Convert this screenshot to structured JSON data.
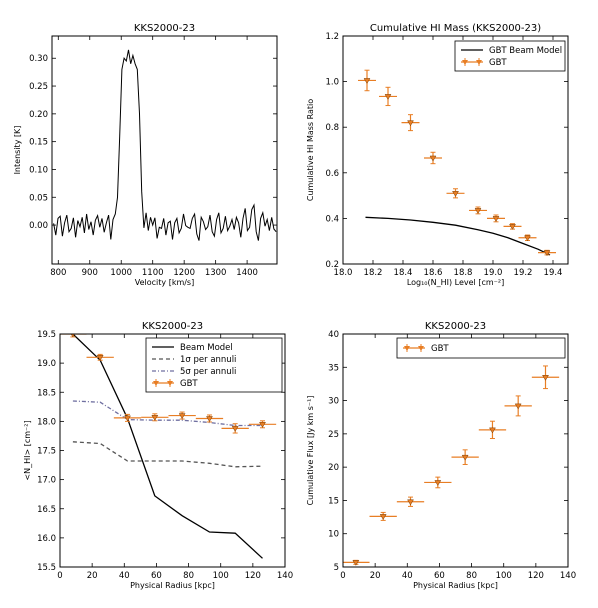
{
  "chart_data": [
    {
      "type": "line",
      "title": "KKS2000-23",
      "xlabel": "Velocity [km/s]",
      "ylabel": "Intensity [K]",
      "xlim": [
        780,
        1495
      ],
      "ylim": [
        -0.07,
        0.34
      ],
      "xticks": [
        800,
        900,
        1000,
        1100,
        1200,
        1300,
        1400
      ],
      "xtick_labels": [
        "800",
        "900",
        "1000",
        "1100",
        "1200",
        "1300",
        "1400"
      ],
      "yticks": [
        0.0,
        0.05,
        0.1,
        0.15,
        0.2,
        0.25,
        0.3
      ],
      "ytick_labels": [
        "0.00",
        "0.05",
        "0.10",
        "0.15",
        "0.20",
        "0.25",
        "0.30"
      ],
      "grid": false,
      "series": [
        {
          "color": "#000000",
          "x": [
            785,
            792,
            799,
            806,
            813,
            820,
            827,
            834,
            841,
            848,
            855,
            862,
            869,
            876,
            883,
            890,
            897,
            904,
            911,
            918,
            925,
            932,
            939,
            946,
            953,
            960,
            967,
            974,
            981,
            988,
            995,
            1002,
            1009,
            1016,
            1023,
            1030,
            1037,
            1044,
            1051,
            1058,
            1065,
            1072,
            1079,
            1086,
            1093,
            1100,
            1107,
            1114,
            1121,
            1128,
            1135,
            1142,
            1149,
            1156,
            1163,
            1170,
            1177,
            1184,
            1191,
            1198,
            1205,
            1212,
            1219,
            1226,
            1233,
            1240,
            1247,
            1254,
            1261,
            1268,
            1275,
            1282,
            1289,
            1296,
            1303,
            1310,
            1317,
            1324,
            1331,
            1338,
            1345,
            1352,
            1359,
            1366,
            1373,
            1380,
            1387,
            1394,
            1401,
            1408,
            1415,
            1422,
            1429,
            1436,
            1443,
            1450,
            1457,
            1464,
            1471,
            1478,
            1485,
            1492
          ],
          "y": [
            0.003,
            -0.018,
            0.012,
            0.016,
            -0.02,
            0.004,
            0.018,
            -0.012,
            -0.006,
            0.013,
            -0.022,
            0.008,
            -0.003,
            0.014,
            -0.014,
            0.02,
            -0.008,
            0.006,
            -0.018,
            0.009,
            0.017,
            -0.004,
            0.012,
            -0.013,
            0.004,
            0.018,
            -0.026,
            0.01,
            0.02,
            0.05,
            0.16,
            0.28,
            0.3,
            0.295,
            0.315,
            0.29,
            0.305,
            0.29,
            0.28,
            0.2,
            0.06,
            -0.005,
            0.022,
            -0.01,
            0.014,
            0.0,
            0.013,
            -0.024,
            -0.004,
            -0.006,
            0.012,
            -0.018,
            0.004,
            0.007,
            -0.026,
            0.004,
            0.012,
            -0.014,
            -0.006,
            0.02,
            -0.001,
            -0.004,
            -0.006,
            0.012,
            0.02,
            -0.016,
            -0.028,
            0.014,
            0.006,
            -0.008,
            -0.003,
            0.018,
            -0.012,
            -0.02,
            0.01,
            0.022,
            -0.014,
            -0.006,
            0.016,
            -0.01,
            -0.002,
            0.01,
            -0.008,
            0.014,
            0.004,
            -0.022,
            0.012,
            0.03,
            -0.01,
            -0.004,
            0.028,
            0.036,
            -0.012,
            -0.028,
            0.012,
            0.022,
            -0.002,
            0.01,
            -0.01,
            0.014,
            -0.007,
            -0.012
          ]
        }
      ]
    },
    {
      "type": "line",
      "title": "Cumulative HI Mass (KKS2000-23)",
      "xlabel": "Log₁₀(N_HI) Level [cm⁻²]",
      "ylabel": "Cumulative HI Mass Ratio",
      "xlim": [
        18.0,
        19.5
      ],
      "ylim": [
        0.2,
        1.2
      ],
      "xticks": [
        18.0,
        18.2,
        18.4,
        18.6,
        18.8,
        19.0,
        19.2,
        19.4
      ],
      "xtick_labels": [
        "18.0",
        "18.2",
        "18.4",
        "18.6",
        "18.8",
        "19.0",
        "19.2",
        "19.4"
      ],
      "yticks": [
        0.2,
        0.4,
        0.6,
        0.8,
        1.0,
        1.2
      ],
      "ytick_labels": [
        "0.2",
        "0.4",
        "0.6",
        "0.8",
        "1.0",
        "1.2"
      ],
      "legend": "top-right",
      "grid": false,
      "series": [
        {
          "name": "GBT Beam Model",
          "kind": "line",
          "color": "#000000",
          "x": [
            18.15,
            18.3,
            18.45,
            18.6,
            18.75,
            18.9,
            19.0,
            19.1,
            19.2,
            19.3,
            19.38
          ],
          "y": [
            0.405,
            0.4,
            0.393,
            0.383,
            0.37,
            0.35,
            0.335,
            0.315,
            0.29,
            0.265,
            0.24
          ]
        },
        {
          "name": "GBT",
          "kind": "errorbar",
          "color": "#e87e24",
          "x": [
            18.16,
            18.3,
            18.45,
            18.6,
            18.75,
            18.9,
            19.02,
            19.13,
            19.23,
            19.36
          ],
          "y": [
            1.005,
            0.935,
            0.82,
            0.665,
            0.51,
            0.435,
            0.4,
            0.365,
            0.315,
            0.25
          ],
          "xerr": [
            0.06,
            0.06,
            0.06,
            0.06,
            0.06,
            0.06,
            0.06,
            0.06,
            0.06,
            0.06
          ],
          "yerr": [
            0.045,
            0.04,
            0.035,
            0.025,
            0.02,
            0.015,
            0.015,
            0.012,
            0.012,
            0.01
          ]
        }
      ]
    },
    {
      "type": "line",
      "title": "KKS2000-23",
      "xlabel": "Physical Radius [kpc]",
      "ylabel": "<N_HI> [cm⁻²]",
      "xlim": [
        0,
        140
      ],
      "ylim": [
        15.5,
        19.5
      ],
      "xticks": [
        0,
        20,
        40,
        60,
        80,
        100,
        120,
        140
      ],
      "xtick_labels": [
        "0",
        "20",
        "40",
        "60",
        "80",
        "100",
        "120",
        "140"
      ],
      "yticks": [
        15.5,
        16.0,
        16.5,
        17.0,
        17.5,
        18.0,
        18.5,
        19.0,
        19.5
      ],
      "ytick_labels": [
        "15.5",
        "16.0",
        "16.5",
        "17.0",
        "17.5",
        "18.0",
        "18.5",
        "19.0",
        "19.5"
      ],
      "legend": "top-right",
      "grid": false,
      "series": [
        {
          "name": "Beam Model",
          "kind": "line",
          "style": "solid",
          "color": "#000000",
          "x": [
            8,
            25,
            42,
            59,
            76,
            93,
            109,
            126
          ],
          "y": [
            19.5,
            19.05,
            18.05,
            16.72,
            16.38,
            16.1,
            16.08,
            15.65
          ]
        },
        {
          "name": "1σ per annuli",
          "kind": "line",
          "style": "dashed",
          "color": "#555555",
          "x": [
            8,
            25,
            42,
            59,
            76,
            93,
            109,
            126
          ],
          "y": [
            17.65,
            17.62,
            17.32,
            17.32,
            17.32,
            17.28,
            17.22,
            17.23
          ]
        },
        {
          "name": "5σ per annuli",
          "kind": "line",
          "style": "dashdot",
          "color": "#6f6fa0",
          "x": [
            8,
            25,
            42,
            59,
            76,
            93,
            109,
            126
          ],
          "y": [
            18.35,
            18.33,
            18.03,
            18.02,
            18.02,
            17.98,
            17.93,
            17.93
          ]
        },
        {
          "name": "GBT",
          "kind": "errorbar",
          "color": "#e87e24",
          "x": [
            8,
            25,
            42,
            59,
            76,
            93,
            109,
            126
          ],
          "y": [
            19.5,
            19.1,
            18.06,
            18.07,
            18.1,
            18.05,
            17.88,
            17.95
          ],
          "xerr": [
            8.5,
            8.5,
            8.5,
            8.5,
            8.5,
            8.5,
            8.5,
            8.5
          ],
          "yerr": [
            0.05,
            0.05,
            0.06,
            0.06,
            0.06,
            0.06,
            0.08,
            0.06
          ]
        }
      ]
    },
    {
      "type": "scatter",
      "title": "KKS2000-23",
      "xlabel": "Physical Radius [kpc]",
      "ylabel": "Cumulative Flux [Jy km s⁻¹]",
      "xlim": [
        0,
        140
      ],
      "ylim": [
        5,
        40
      ],
      "xticks": [
        0,
        20,
        40,
        60,
        80,
        100,
        120,
        140
      ],
      "xtick_labels": [
        "0",
        "20",
        "40",
        "60",
        "80",
        "100",
        "120",
        "140"
      ],
      "yticks": [
        5,
        10,
        15,
        20,
        25,
        30,
        35,
        40
      ],
      "ytick_labels": [
        "5",
        "10",
        "15",
        "20",
        "25",
        "30",
        "35",
        "40"
      ],
      "legend": "top-right",
      "grid": false,
      "series": [
        {
          "name": "GBT",
          "kind": "errorbar",
          "color": "#e87e24",
          "x": [
            8,
            25,
            42,
            59,
            76,
            93,
            109,
            126
          ],
          "y": [
            5.7,
            12.6,
            14.8,
            17.7,
            21.5,
            25.6,
            29.2,
            33.5
          ],
          "xerr": [
            8.5,
            8.5,
            8.5,
            8.5,
            8.5,
            8.5,
            8.5,
            8.5
          ],
          "yerr": [
            0.3,
            0.6,
            0.7,
            0.8,
            1.1,
            1.3,
            1.5,
            1.7
          ]
        }
      ]
    }
  ]
}
